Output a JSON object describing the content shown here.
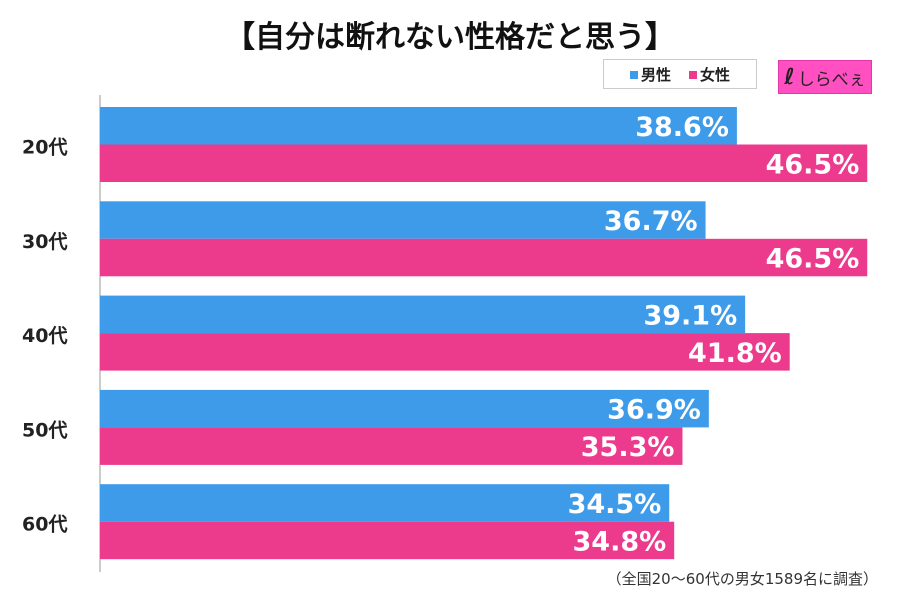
{
  "colors": {
    "male": "#3d9be9",
    "female": "#ec3a8c"
  },
  "logo": {
    "text": "しらべぇ"
  },
  "note": "（全国20〜60代の男女1589名に調査）",
  "chart_data": {
    "type": "bar",
    "orientation": "horizontal",
    "title": "【自分は断れない性格だと思う】",
    "categories": [
      "20代",
      "30代",
      "40代",
      "50代",
      "60代"
    ],
    "series": [
      {
        "name": "男性",
        "values": [
          38.6,
          36.7,
          39.1,
          36.9,
          34.5
        ]
      },
      {
        "name": "女性",
        "values": [
          46.5,
          46.5,
          41.8,
          35.3,
          34.8
        ]
      }
    ],
    "unit": "%",
    "legend": "top-right",
    "grid": false
  }
}
